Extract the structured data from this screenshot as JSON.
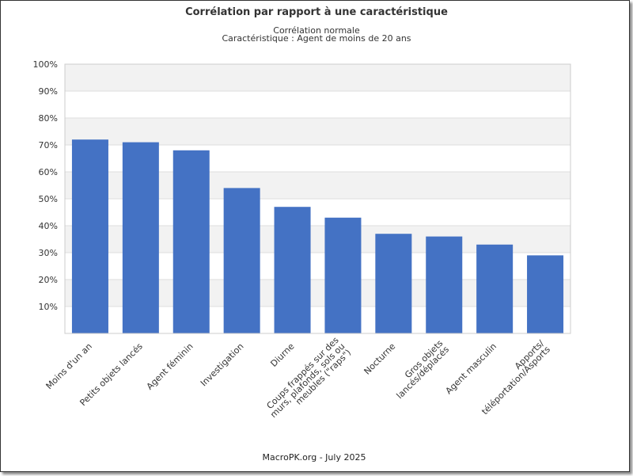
{
  "chart_data": {
    "type": "bar",
    "title": "Corrélation par rapport à une caractéristique",
    "subtitle_lines": [
      "Corrélation normale",
      "Caractéristique : Agent de moins de 20 ans"
    ],
    "categories": [
      [
        "Moins d'un an"
      ],
      [
        "Petits objets lancés"
      ],
      [
        "Agent féminin"
      ],
      [
        "Investigation"
      ],
      [
        "Diurne"
      ],
      [
        "Coups frappés sur des",
        "murs, plafonds, sols ou",
        "meubles (\"raps\")"
      ],
      [
        "Nocturne"
      ],
      [
        "Gros objets",
        "lancés/déplacés"
      ],
      [
        "Agent masculin"
      ],
      [
        "Apports/",
        "téléportation/Asports"
      ]
    ],
    "values": [
      72,
      71,
      68,
      54,
      47,
      43,
      37,
      36,
      33,
      29
    ],
    "ylim": [
      0,
      100
    ],
    "yticks": [
      10,
      20,
      30,
      40,
      50,
      60,
      70,
      80,
      90,
      100
    ],
    "ytick_labels": [
      "10%",
      "20%",
      "30%",
      "40%",
      "50%",
      "60%",
      "70%",
      "80%",
      "90%",
      "100%"
    ],
    "bar_color": "#4472c4",
    "band_color": "#f2f2f2",
    "grid": true,
    "footer": "MacroPK.org - July 2025"
  }
}
